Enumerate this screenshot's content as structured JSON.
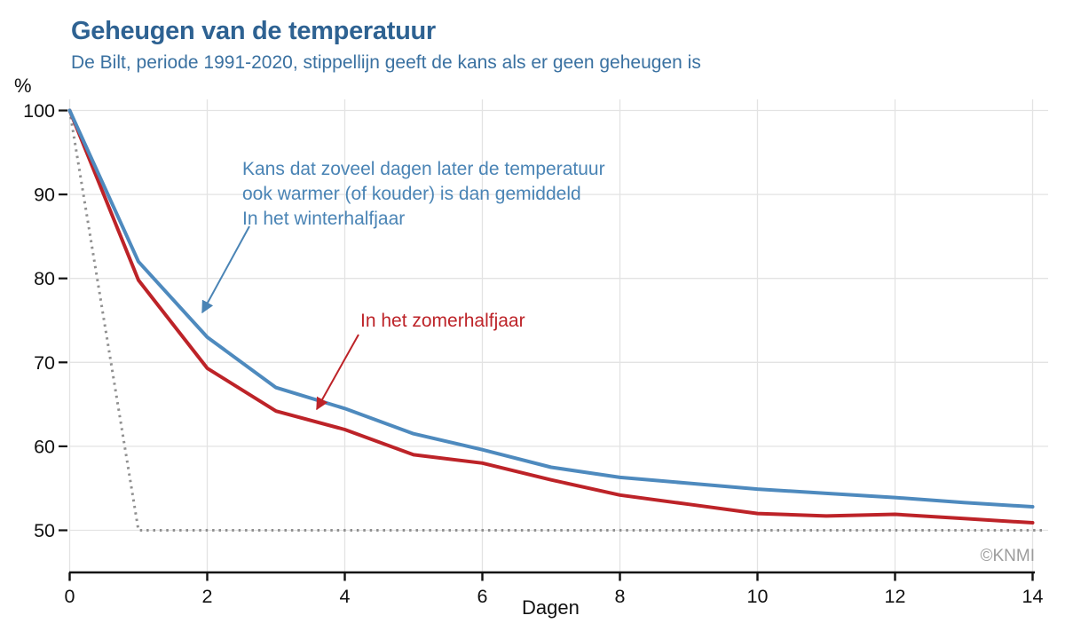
{
  "header": {
    "title": "Geheugen van de temperatuur",
    "subtitle": "De Bilt, periode 1991-2020, stippellijn geeft de kans als er geen geheugen is"
  },
  "chart_data": {
    "type": "line",
    "title": "Geheugen van de temperatuur",
    "subtitle": "De Bilt, periode 1991-2020, stippellijn geeft de kans als er geen geheugen is",
    "xlabel": "Dagen",
    "ylabel": "%",
    "x": [
      0,
      1,
      2,
      3,
      4,
      5,
      6,
      7,
      8,
      9,
      10,
      11,
      12,
      13,
      14
    ],
    "xlim": [
      0,
      14
    ],
    "ylim": [
      50,
      100
    ],
    "x_ticks": [
      0,
      2,
      4,
      6,
      8,
      10,
      12,
      14
    ],
    "y_ticks": [
      50,
      60,
      70,
      80,
      90,
      100
    ],
    "grid": true,
    "legend_position": "inline-annotations",
    "series": [
      {
        "name": "In het winterhalfjaar",
        "color": "#4e8abe",
        "style": "solid",
        "values": [
          100,
          82,
          73,
          67,
          64.5,
          61.5,
          59.6,
          57.5,
          56.3,
          55.6,
          54.9,
          54.4,
          53.9,
          53.3,
          52.8
        ]
      },
      {
        "name": "In het zomerhalfjaar",
        "color": "#bd2328",
        "style": "solid",
        "values": [
          100,
          79.8,
          69.3,
          64.2,
          62,
          59,
          58,
          56,
          54.2,
          53.1,
          52,
          51.7,
          51.9,
          51.4,
          50.9
        ]
      },
      {
        "name": "Kans als er geen geheugen is (stippellijn)",
        "color": "#909090",
        "style": "dotted",
        "values": [
          100,
          50,
          50,
          50,
          50,
          50,
          50,
          50,
          50,
          50,
          50,
          50,
          50,
          50,
          50
        ]
      }
    ]
  },
  "annotations": {
    "winter": {
      "lines": [
        "Kans dat zoveel dagen later de temperatuur",
        "ook warmer (of kouder) is dan gemiddeld",
        "In het winterhalfjaar"
      ],
      "color": "#4a84b5"
    },
    "zomer": {
      "text": "In het zomerhalfjaar",
      "color": "#bd2328"
    }
  },
  "axis": {
    "x_label": "Dagen",
    "y_unit": "%"
  },
  "footer": {
    "watermark": "©KNMI"
  },
  "colors": {
    "title": "#2e6292",
    "subtitle": "#3a71a1",
    "grid": "#e3e3e3",
    "axis_line": "#111111",
    "tick_text": "#111111",
    "watermark": "#9c9c9c",
    "background": "#ffffff"
  }
}
